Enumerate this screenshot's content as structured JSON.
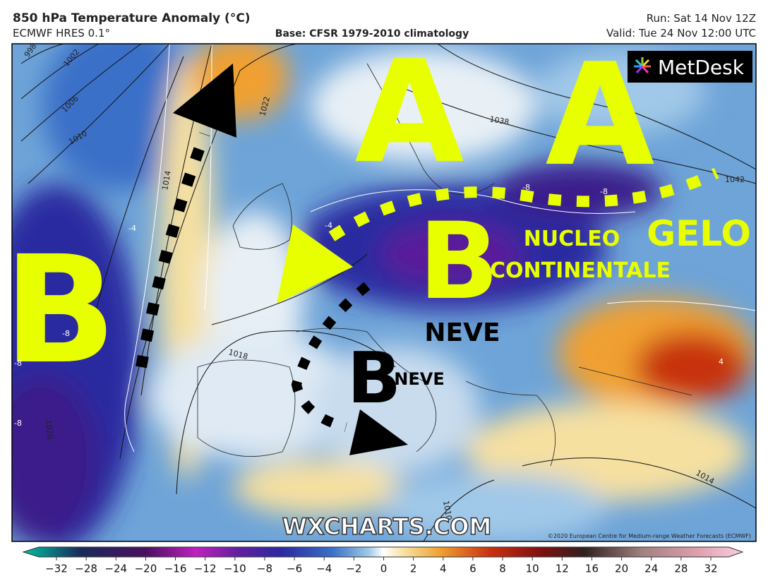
{
  "header": {
    "title": "850 hPa Temperature Anomaly (°C)",
    "model": "ECMWF HRES 0.1°",
    "base": "Base: CFSR 1979-2010 climatology",
    "run": "Run: Sat 14 Nov 12Z",
    "valid": "Valid: Tue 24 Nov 12:00 UTC"
  },
  "logo": "MetDesk",
  "annotations": {
    "high_1": "A",
    "high_2": "A",
    "low_1": "B",
    "low_2": "B",
    "low_3": "B",
    "snow_1": "NEVE",
    "snow_2": "NEVE",
    "nucleus": "NUCLEO",
    "continental": "CONTINENTALE",
    "frost": "GELO"
  },
  "isobar_labels": [
    "998",
    "1002",
    "1006",
    "1010",
    "1014",
    "1018",
    "1022",
    "1026",
    "1038",
    "1042",
    "1014",
    "1010"
  ],
  "temperature_labels": [
    "-4",
    "-8",
    "-8",
    "-8",
    "-4",
    "-8",
    "-8",
    "4"
  ],
  "watermark": "WXCHARTS.COM",
  "copyright": "©2020 European Centre for Medium-range Weather Forecasts (ECMWF)",
  "colorbar": {
    "ticks": [
      {
        "value": -32,
        "label": "−32"
      },
      {
        "value": -28,
        "label": "−28"
      },
      {
        "value": -24,
        "label": "−24"
      },
      {
        "value": -20,
        "label": "−20"
      },
      {
        "value": -16,
        "label": "−16"
      },
      {
        "value": -12,
        "label": "−12"
      },
      {
        "value": -10,
        "label": "−10"
      },
      {
        "value": -8,
        "label": "−8"
      },
      {
        "value": -6,
        "label": "−6"
      },
      {
        "value": -4,
        "label": "−4"
      },
      {
        "value": -2,
        "label": "−2"
      },
      0,
      2,
      4,
      6,
      8,
      10,
      12,
      16,
      20,
      24,
      28,
      32
    ]
  }
}
